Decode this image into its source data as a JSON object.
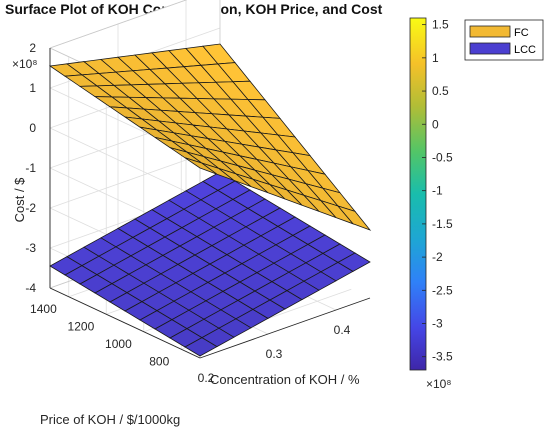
{
  "chart_data": {
    "type": "surface",
    "title": "Surface Plot of KOH Concentration, KOH Price, and Cost",
    "xlabel": "Concentration of KOH / %",
    "ylabel": "Price of KOH / $/1000kg",
    "zlabel": "Cost / $",
    "x_ticks": [
      "0.2",
      "0.3",
      "0.4"
    ],
    "y_ticks": [
      "800",
      "1000",
      "1200",
      "1400"
    ],
    "z_ticks": [
      "-4",
      "-3",
      "-2",
      "-1",
      "0",
      "1",
      "2"
    ],
    "z_exponent": "×10⁸",
    "x_range": [
      0.2,
      0.45
    ],
    "y_range": [
      700,
      1500
    ],
    "z_range": [
      -400000000.0,
      200000000.0
    ],
    "grid": true,
    "legend_position": "top-right",
    "series": [
      {
        "name": "FC",
        "color": "#f2b933",
        "x": [
          0.2,
          0.45
        ],
        "y": [
          700,
          1500
        ],
        "z": [
          [
            75000000.0,
            155000000.0
          ],
          [
            -230000000.0,
            60000000.0
          ]
        ]
      },
      {
        "name": "LCC",
        "color": "#4b3fd0",
        "x": [
          0.2,
          0.45
        ],
        "y": [
          700,
          1500
        ],
        "z": [
          [
            -395000000.0,
            -345000000.0
          ],
          [
            -310000000.0,
            -260000000.0
          ]
        ]
      }
    ],
    "colorbar": {
      "ticks": [
        "-3.5",
        "-3",
        "-2.5",
        "-2",
        "-1.5",
        "-1",
        "-0.5",
        "0",
        "0.5",
        "1",
        "1.5"
      ],
      "range": [
        -370000000.0,
        160000000.0
      ],
      "exponent": "×10⁸",
      "colormap": "parula"
    }
  }
}
